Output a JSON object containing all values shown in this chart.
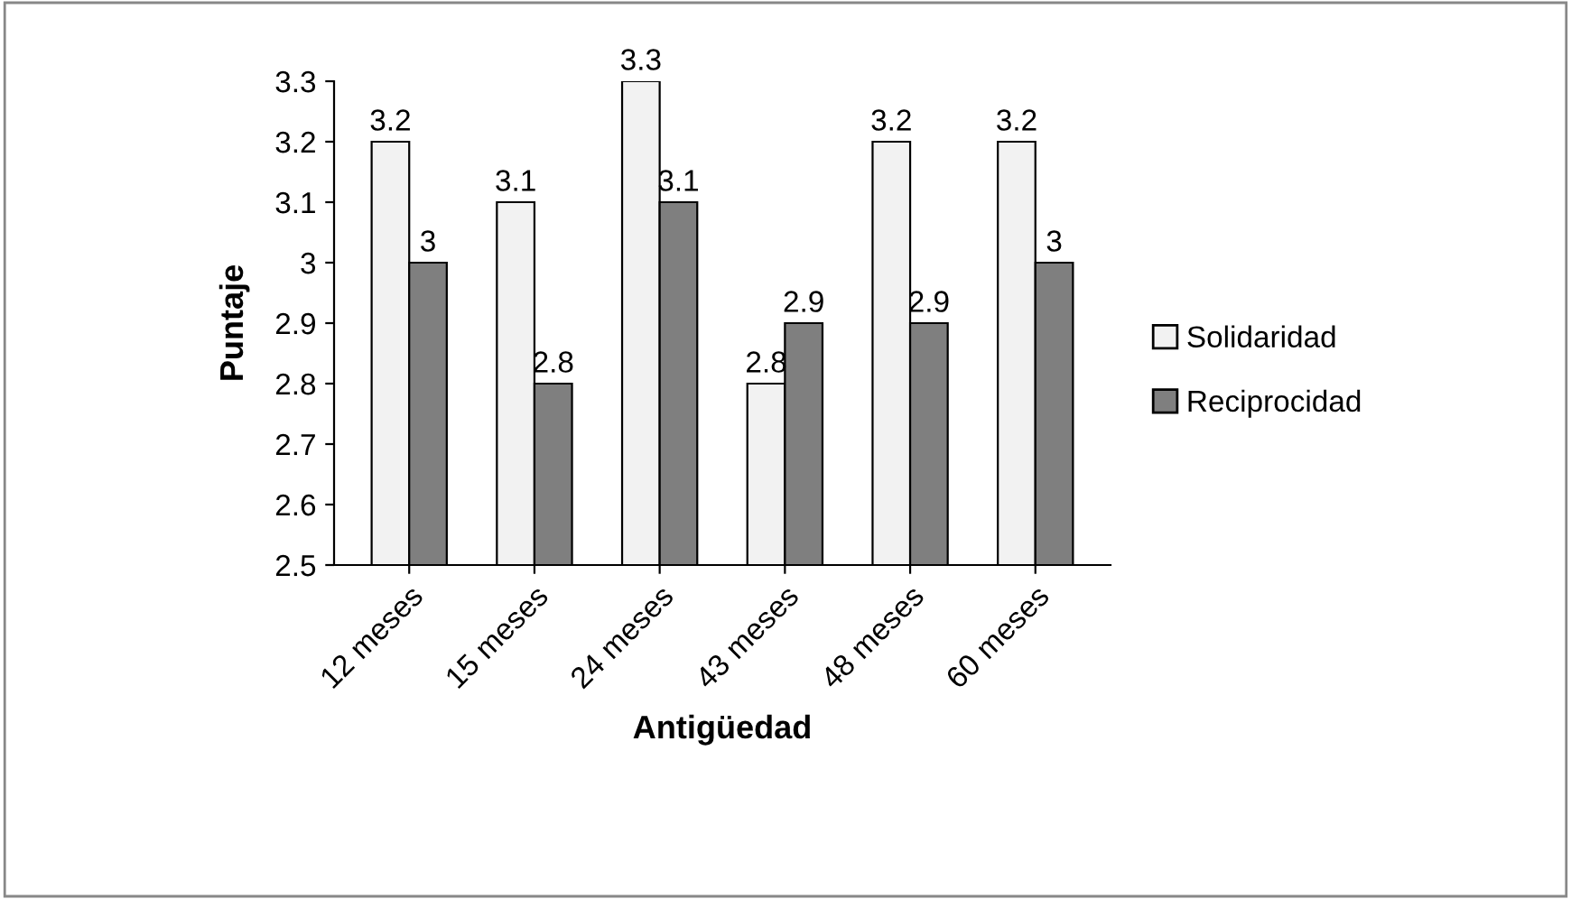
{
  "chart_data": {
    "type": "bar",
    "xlabel": "Antigüedad",
    "ylabel": "Puntaje",
    "categories": [
      "12 meses",
      "15 meses",
      "24 meses",
      "43 meses",
      "48 meses",
      "60 meses"
    ],
    "series": [
      {
        "name": "Solidaridad",
        "color": "#f2f2f2",
        "values": [
          3.2,
          3.1,
          3.3,
          2.8,
          3.2,
          3.2
        ]
      },
      {
        "name": "Reciprocidad",
        "color": "#7f7f7f",
        "values": [
          3,
          2.8,
          3.1,
          2.9,
          2.9,
          3
        ]
      }
    ],
    "ylim": [
      2.5,
      3.3
    ],
    "yticks": [
      2.5,
      2.6,
      2.7,
      2.8,
      2.9,
      3,
      3.1,
      3.2,
      3.3
    ],
    "grid": false,
    "legend": "right",
    "data_labels": true
  }
}
